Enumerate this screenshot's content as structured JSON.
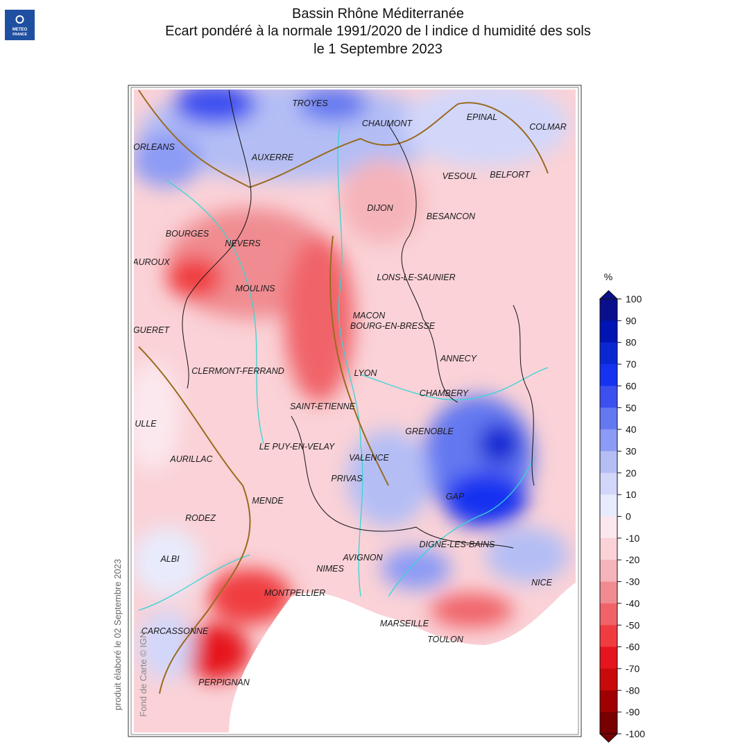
{
  "header": {
    "title_lines": [
      "Bassin Rhône Méditerranée",
      "Ecart pondéré à la normale 1991/2020 de l indice d humidité des sols",
      "le 1 Septembre 2023"
    ]
  },
  "logo": {
    "lines": [
      "METEO",
      "FRANCE"
    ]
  },
  "map": {
    "cities": [
      "TROYES",
      "CHAUMONT",
      "EPINAL",
      "COLMAR",
      "ORLEANS",
      "AUXERRE",
      "VESOUL",
      "BELFORT",
      "DIJON",
      "BESANCON",
      "BOURGES",
      "NEVERS",
      "AUROUX",
      "LONS-LE-SAUNIER",
      "MOULINS",
      "MACON",
      "BOURG-EN-BRESSE",
      "GUERET",
      "ANNECY",
      "CLERMONT-FERRAND",
      "LYON",
      "CHAMBERY",
      "SAINT-ETIENNE",
      "ULLE",
      "GRENOBLE",
      "LE PUY-EN-VELAY",
      "AURILLAC",
      "VALENCE",
      "PRIVAS",
      "GAP",
      "MENDE",
      "RODEZ",
      "DIGNE-LES-BAINS",
      "AVIGNON",
      "ALBI",
      "NIMES",
      "NICE",
      "MONTPELLIER",
      "MARSEILLE",
      "CARCASSONNE",
      "TOULON",
      "PERPIGNAN"
    ]
  },
  "legend": {
    "unit": "%",
    "ticks": [
      100,
      90,
      80,
      70,
      60,
      50,
      40,
      30,
      20,
      10,
      0,
      -10,
      -20,
      -30,
      -40,
      -50,
      -60,
      -70,
      -80,
      -90,
      -100
    ],
    "colors": [
      "#0a0f8c",
      "#0014b4",
      "#0a28d2",
      "#1432f0",
      "#3c50f0",
      "#6478f0",
      "#8c9bf5",
      "#b4bef5",
      "#d2d7fa",
      "#e8ebfc",
      "#fbe8ee",
      "#fad2d7",
      "#f5b4b9",
      "#f08c91",
      "#f06469",
      "#f03c41",
      "#e6141e",
      "#c80a0a",
      "#a00000",
      "#780000"
    ]
  },
  "credits": {
    "produced": "produit élaboré le 02 Septembre 2023",
    "basemap": "Fond de Carte © IGN"
  }
}
